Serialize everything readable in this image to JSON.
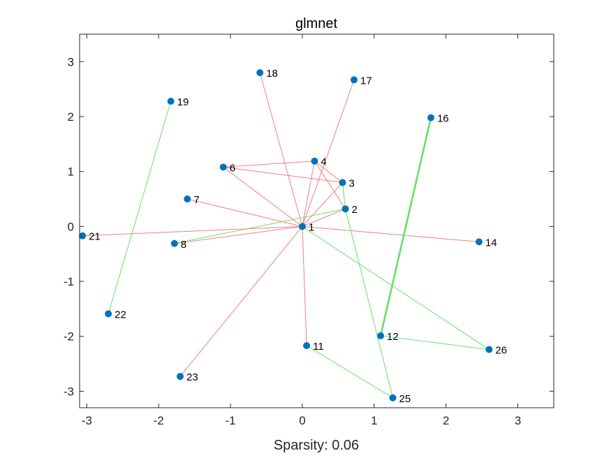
{
  "chart_data": {
    "type": "scatter",
    "title": "glmnet",
    "xlabel": "Sparsity: 0.06",
    "ylabel": "",
    "xlim": [
      -3.1,
      3.5
    ],
    "ylim": [
      -3.3,
      3.5
    ],
    "xticks": [
      -3,
      -2,
      -1,
      0,
      1,
      2,
      3
    ],
    "yticks": [
      -3,
      -2,
      -1,
      0,
      1,
      2,
      3
    ],
    "xtick_labels": [
      "-3",
      "-2",
      "-1",
      "0",
      "1",
      "2",
      "3"
    ],
    "ytick_labels": [
      "-3",
      "-2",
      "-1",
      "0",
      "1",
      "2",
      "3"
    ],
    "colors": {
      "node": "#0072BD",
      "negative_edge": "#f08080",
      "positive_edge": "#66e066",
      "axis": "#262626"
    },
    "nodes": [
      {
        "id": "1",
        "x": 0.0,
        "y": 0.0
      },
      {
        "id": "2",
        "x": 0.6,
        "y": 0.32
      },
      {
        "id": "3",
        "x": 0.56,
        "y": 0.8
      },
      {
        "id": "4",
        "x": 0.17,
        "y": 1.19
      },
      {
        "id": "6",
        "x": -1.1,
        "y": 1.08
      },
      {
        "id": "7",
        "x": -1.6,
        "y": 0.5
      },
      {
        "id": "8",
        "x": -1.78,
        "y": -0.31
      },
      {
        "id": "11",
        "x": 0.06,
        "y": -2.17
      },
      {
        "id": "12",
        "x": 1.09,
        "y": -1.99
      },
      {
        "id": "14",
        "x": 2.46,
        "y": -0.28
      },
      {
        "id": "16",
        "x": 1.79,
        "y": 1.98
      },
      {
        "id": "17",
        "x": 0.72,
        "y": 2.67
      },
      {
        "id": "18",
        "x": -0.59,
        "y": 2.8
      },
      {
        "id": "19",
        "x": -1.83,
        "y": 2.28
      },
      {
        "id": "21",
        "x": -3.06,
        "y": -0.17
      },
      {
        "id": "22",
        "x": -2.7,
        "y": -1.59
      },
      {
        "id": "23",
        "x": -1.7,
        "y": -2.73
      },
      {
        "id": "25",
        "x": 1.26,
        "y": -3.12
      },
      {
        "id": "26",
        "x": 2.6,
        "y": -2.24
      }
    ],
    "edges": [
      {
        "from": "1",
        "to": "2",
        "sign": "negative",
        "weight": 1
      },
      {
        "from": "1",
        "to": "3",
        "sign": "negative",
        "weight": 1
      },
      {
        "from": "1",
        "to": "4",
        "sign": "negative",
        "weight": 1
      },
      {
        "from": "1",
        "to": "6",
        "sign": "negative",
        "weight": 1
      },
      {
        "from": "1",
        "to": "7",
        "sign": "negative",
        "weight": 1
      },
      {
        "from": "1",
        "to": "14",
        "sign": "negative",
        "weight": 1
      },
      {
        "from": "1",
        "to": "17",
        "sign": "negative",
        "weight": 1
      },
      {
        "from": "1",
        "to": "18",
        "sign": "negative",
        "weight": 1
      },
      {
        "from": "1",
        "to": "21",
        "sign": "negative",
        "weight": 1
      },
      {
        "from": "1",
        "to": "23",
        "sign": "negative",
        "weight": 1
      },
      {
        "from": "1",
        "to": "11",
        "sign": "negative",
        "weight": 1
      },
      {
        "from": "1",
        "to": "8",
        "sign": "negative",
        "weight": 1
      },
      {
        "from": "6",
        "to": "4",
        "sign": "negative",
        "weight": 1
      },
      {
        "from": "6",
        "to": "3",
        "sign": "negative",
        "weight": 1
      },
      {
        "from": "4",
        "to": "3",
        "sign": "negative",
        "weight": 1
      },
      {
        "from": "4",
        "to": "2",
        "sign": "negative",
        "weight": 1
      },
      {
        "from": "3",
        "to": "2",
        "sign": "positive",
        "weight": 1
      },
      {
        "from": "2",
        "to": "8",
        "sign": "positive",
        "weight": 1
      },
      {
        "from": "2",
        "to": "25",
        "sign": "positive",
        "weight": 1
      },
      {
        "from": "1",
        "to": "26",
        "sign": "positive",
        "weight": 1
      },
      {
        "from": "26",
        "to": "12",
        "sign": "positive",
        "weight": 1
      },
      {
        "from": "12",
        "to": "16",
        "sign": "positive",
        "weight": 2
      },
      {
        "from": "11",
        "to": "25",
        "sign": "positive",
        "weight": 1
      },
      {
        "from": "19",
        "to": "22",
        "sign": "positive",
        "weight": 1
      }
    ]
  }
}
